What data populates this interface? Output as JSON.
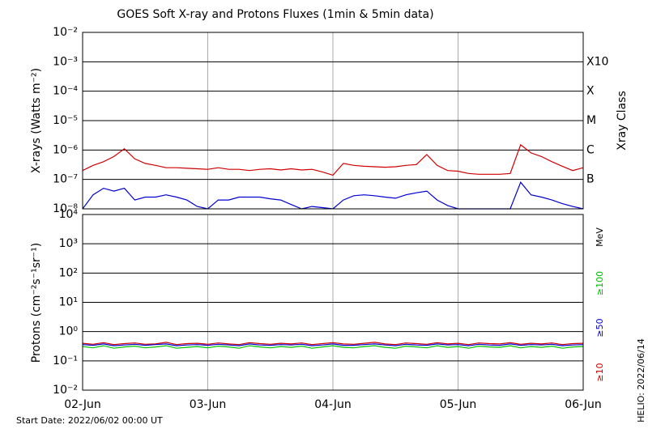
{
  "footer": {
    "start": "Start Date: 2022/06/02 00:00 UT",
    "helio": "HELIO: 2022/06/14"
  },
  "chart_data": [
    {
      "type": "line",
      "title": "GOES Soft X-ray and Protons Fluxes   (1min & 5min data)",
      "y_label": "X-rays (Watts m⁻²)",
      "y2_label": "Xray Class",
      "log_y": true,
      "ylim": [
        1e-08,
        0.01
      ],
      "yticks": [
        {
          "value": 1e-08,
          "label": "10⁻⁸"
        },
        {
          "value": 1e-07,
          "label": "10⁻⁷"
        },
        {
          "value": 1e-06,
          "label": "10⁻⁶"
        },
        {
          "value": 1e-05,
          "label": "10⁻⁵"
        },
        {
          "value": 0.0001,
          "label": "10⁻⁴"
        },
        {
          "value": 0.001,
          "label": "10⁻³"
        },
        {
          "value": 0.01,
          "label": "10⁻²"
        }
      ],
      "y2lim": [
        1e-08,
        0.01
      ],
      "y2ticks": [
        {
          "value": 1e-07,
          "label": "B"
        },
        {
          "value": 1e-06,
          "label": "C"
        },
        {
          "value": 1e-05,
          "label": "M"
        },
        {
          "value": 0.0001,
          "label": "X"
        },
        {
          "value": 0.001,
          "label": "X10"
        }
      ],
      "grid": true,
      "series": [
        {
          "color": "#d00000",
          "values": [
            2e-07,
            3e-07,
            4e-07,
            6e-07,
            1.1e-06,
            5e-07,
            3.5e-07,
            3e-07,
            2.5e-07,
            2.5e-07,
            2.4e-07,
            2.3e-07,
            2.2e-07,
            2.5e-07,
            2.2e-07,
            2.2e-07,
            2e-07,
            2.2e-07,
            2.3e-07,
            2.1e-07,
            2.3e-07,
            2.1e-07,
            2.2e-07,
            1.8e-07,
            1.4e-07,
            3.5e-07,
            3e-07,
            2.8e-07,
            2.7e-07,
            2.6e-07,
            2.7e-07,
            3e-07,
            3.2e-07,
            7e-07,
            3e-07,
            2e-07,
            1.9e-07,
            1.6e-07,
            1.5e-07,
            1.5e-07,
            1.5e-07,
            1.6e-07,
            1.5e-06,
            8e-07,
            6e-07,
            4e-07,
            2.8e-07,
            2e-07,
            2.5e-07
          ]
        },
        {
          "color": "#0000d0",
          "values": [
            1e-08,
            3e-08,
            5e-08,
            4e-08,
            5e-08,
            2e-08,
            2.5e-08,
            2.5e-08,
            3e-08,
            2.5e-08,
            2e-08,
            1.2e-08,
            1e-08,
            2e-08,
            2e-08,
            2.5e-08,
            2.5e-08,
            2.5e-08,
            2.2e-08,
            2e-08,
            1.4e-08,
            1e-08,
            1.2e-08,
            1.1e-08,
            1e-08,
            2e-08,
            2.8e-08,
            3e-08,
            2.8e-08,
            2.5e-08,
            2.3e-08,
            3e-08,
            3.5e-08,
            4e-08,
            2e-08,
            1.3e-08,
            1e-08,
            1e-08,
            1e-08,
            1e-08,
            1e-08,
            1e-08,
            8e-08,
            3e-08,
            2.5e-08,
            2e-08,
            1.5e-08,
            1.2e-08,
            1e-08
          ]
        }
      ]
    },
    {
      "type": "line",
      "y_label": "Protons (cm⁻²s⁻¹sr⁻¹)",
      "unit": "MeV",
      "log_y": true,
      "x": [
        0,
        0.0833,
        0.1667,
        0.25,
        0.3333,
        0.4167,
        0.5,
        0.5833,
        0.6667,
        0.75,
        0.8333,
        0.9167,
        1,
        1.0833,
        1.1667,
        1.25,
        1.3333,
        1.4167,
        1.5,
        1.5833,
        1.6667,
        1.75,
        1.8333,
        1.9167,
        2,
        2.0833,
        2.1667,
        2.25,
        2.3333,
        2.4167,
        2.5,
        2.5833,
        2.6667,
        2.75,
        2.8333,
        2.9167,
        3,
        3.0833,
        3.1667,
        3.25,
        3.3333,
        3.4167,
        3.5,
        3.5833,
        3.6667,
        3.75,
        3.8333,
        3.9167,
        4
      ],
      "xlim": [
        0,
        4
      ],
      "xticks": [
        {
          "value": 0,
          "label": "02-Jun"
        },
        {
          "value": 1,
          "label": "03-Jun"
        },
        {
          "value": 2,
          "label": "04-Jun"
        },
        {
          "value": 3,
          "label": "05-Jun"
        },
        {
          "value": 4,
          "label": "06-Jun"
        }
      ],
      "ylim": [
        0.01,
        10000.0
      ],
      "yticks": [
        {
          "value": 0.01,
          "label": "10⁻²"
        },
        {
          "value": 0.1,
          "label": "10⁻¹"
        },
        {
          "value": 1,
          "label": "10⁰"
        },
        {
          "value": 10,
          "label": "10¹"
        },
        {
          "value": 100,
          "label": "10²"
        },
        {
          "value": 1000,
          "label": "10³"
        },
        {
          "value": 10000,
          "label": "10⁴"
        }
      ],
      "threshold": 10,
      "grid": true,
      "series": [
        {
          "name": "≥10",
          "color": "#d00000",
          "values": [
            0.4,
            0.37,
            0.42,
            0.36,
            0.39,
            0.41,
            0.37,
            0.38,
            0.43,
            0.36,
            0.39,
            0.4,
            0.37,
            0.41,
            0.38,
            0.36,
            0.42,
            0.39,
            0.37,
            0.4,
            0.38,
            0.41,
            0.36,
            0.39,
            0.42,
            0.38,
            0.37,
            0.4,
            0.43,
            0.38,
            0.36,
            0.41,
            0.39,
            0.37,
            0.42,
            0.38,
            0.4,
            0.36,
            0.41,
            0.39,
            0.38,
            0.42,
            0.37,
            0.4,
            0.38,
            0.41,
            0.36,
            0.39,
            0.4
          ]
        },
        {
          "name": "≥50",
          "color": "#0000d0",
          "values": [
            0.36,
            0.34,
            0.38,
            0.33,
            0.35,
            0.37,
            0.34,
            0.36,
            0.38,
            0.33,
            0.35,
            0.36,
            0.34,
            0.37,
            0.35,
            0.33,
            0.38,
            0.35,
            0.34,
            0.36,
            0.35,
            0.37,
            0.33,
            0.35,
            0.38,
            0.34,
            0.34,
            0.36,
            0.38,
            0.35,
            0.33,
            0.37,
            0.35,
            0.34,
            0.38,
            0.35,
            0.36,
            0.33,
            0.37,
            0.35,
            0.34,
            0.38,
            0.34,
            0.36,
            0.35,
            0.37,
            0.33,
            0.35,
            0.36
          ]
        },
        {
          "name": "≥100",
          "color": "#00c000",
          "values": [
            0.31,
            0.28,
            0.33,
            0.27,
            0.3,
            0.32,
            0.28,
            0.3,
            0.33,
            0.27,
            0.29,
            0.31,
            0.28,
            0.32,
            0.3,
            0.27,
            0.33,
            0.3,
            0.28,
            0.31,
            0.29,
            0.32,
            0.27,
            0.3,
            0.33,
            0.29,
            0.28,
            0.31,
            0.33,
            0.29,
            0.27,
            0.32,
            0.3,
            0.28,
            0.33,
            0.29,
            0.31,
            0.27,
            0.32,
            0.3,
            0.29,
            0.33,
            0.28,
            0.31,
            0.29,
            0.32,
            0.27,
            0.3,
            0.31
          ]
        }
      ]
    }
  ]
}
